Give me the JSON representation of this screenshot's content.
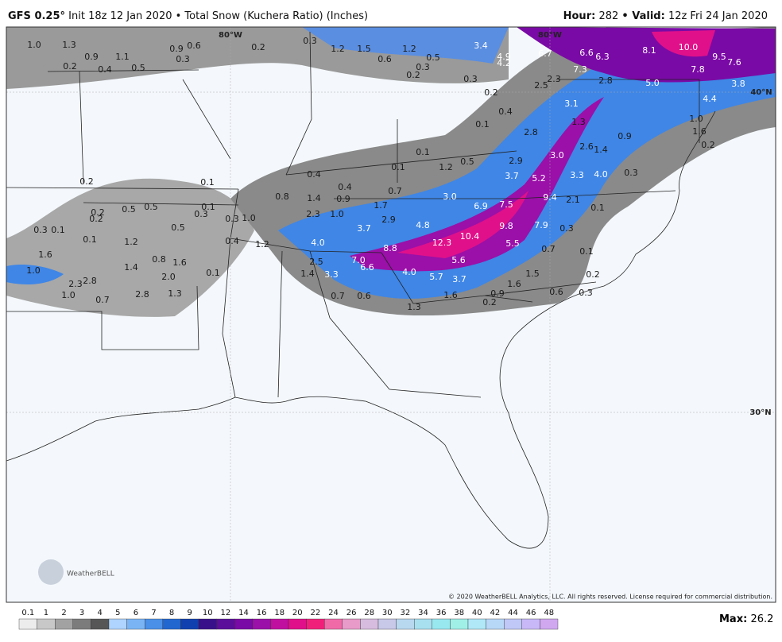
{
  "header": {
    "model": "GFS 0.25°",
    "run": "Init 18z 12 Jan 2020 • Total Snow (Kuchera Ratio) (Inches)",
    "hour_label": "Hour:",
    "hour": "282",
    "valid_label": "• Valid:",
    "valid": "12z Fri 24 Jan 2020"
  },
  "grid_labels": [
    "80°W",
    "80°W",
    "40°N",
    "30°N"
  ],
  "map_labels": [
    "1.0",
    "1.3",
    "0.9",
    "1.1",
    "0.2",
    "0.4",
    "0.5",
    "0.9",
    "0.6",
    "0.3",
    "0.2",
    "0.3",
    "1.2",
    "1.5",
    "0.6",
    "1.2",
    "0.5",
    "0.3",
    "0.2",
    "3.4",
    "4.9",
    "4.2",
    "0.3",
    "6.7",
    "6.6",
    "6.3",
    "8.1",
    "10.0",
    "9.5",
    "7.6",
    "7.8",
    "7.3",
    "2.3",
    "2.5",
    "2.8",
    "5.0",
    "3.8",
    "4.4",
    "0.2",
    "3.1",
    "0.4",
    "0.1",
    "1.3",
    "2.8",
    "0.9",
    "1.6",
    "0.2",
    "1.0",
    "2.6",
    "1.4",
    "3.0",
    "2.9",
    "0.5",
    "0.1",
    "1.2",
    "0.1",
    "3.7",
    "5.2",
    "3.3",
    "4.0",
    "0.3",
    "0.1",
    "0.2",
    "0.4",
    "0.4",
    "0.7",
    "0.8",
    "1.4",
    "0.9",
    "3.0",
    "6.9",
    "7.5",
    "9.4",
    "2.1",
    "0.1",
    "1.7",
    "2.3",
    "1.0",
    "2.9",
    "4.8",
    "10.4",
    "9.8",
    "7.9",
    "0.3",
    "3.7",
    "0.5",
    "0.5",
    "0.2",
    "0.2",
    "0.1",
    "0.3",
    "0.3",
    "1.0",
    "0.3",
    "0.1",
    "0.5",
    "0.1",
    "1.2",
    "0.4",
    "1.2",
    "4.0",
    "8.8",
    "12.3",
    "5.5",
    "0.7",
    "0.1",
    "1.6",
    "0.8",
    "1.6",
    "7.0",
    "6.6",
    "5.6",
    "2.5",
    "1.4",
    "1.0",
    "1.4",
    "3.3",
    "4.0",
    "5.7",
    "3.7",
    "1.5",
    "0.2",
    "0.1",
    "2.0",
    "2.3",
    "2.8",
    "1.6",
    "0.6",
    "0.3",
    "1.0",
    "0.7",
    "2.8",
    "1.3",
    "0.7",
    "0.6",
    "1.6",
    "0.9",
    "0.2",
    "1.3"
  ],
  "logo": "WeatherBELL",
  "copyright": "© 2020 WeatherBELL Analytics, LLC. All rights reserved. License required for commercial distribution.",
  "colorbar": {
    "ticks": [
      "0.1",
      "1",
      "2",
      "3",
      "4",
      "5",
      "6",
      "7",
      "8",
      "9",
      "10",
      "12",
      "14",
      "16",
      "18",
      "20",
      "22",
      "24",
      "26",
      "28",
      "30",
      "32",
      "34",
      "36",
      "38",
      "40",
      "42",
      "44",
      "46",
      "48"
    ],
    "colors": [
      "#ececec",
      "#c8c8c8",
      "#a2a2a2",
      "#7c7c7c",
      "#565656",
      "#aed4ff",
      "#7ab4f5",
      "#4a90e8",
      "#2266d0",
      "#1040b0",
      "#38108a",
      "#5a0e9a",
      "#7a0aa5",
      "#9a10a8",
      "#c010a0",
      "#e0108a",
      "#f0207a",
      "#f06aa8",
      "#e89ac8",
      "#d8bce0",
      "#c8c8e8",
      "#b8d8f0",
      "#a8e0f0",
      "#98e8f0",
      "#a0f0e8",
      "#b0e8f8",
      "#b8d8f8",
      "#c0c8f8",
      "#c8b8f8",
      "#d0a8f0"
    ]
  },
  "max_label": "Max:",
  "max_value": "26.2"
}
